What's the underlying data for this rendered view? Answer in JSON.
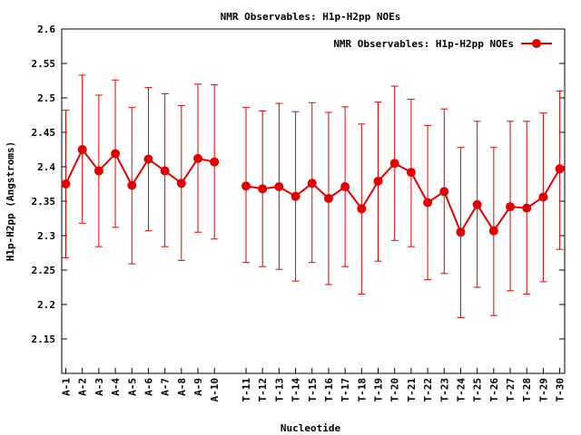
{
  "chart_data": {
    "type": "line",
    "title": "NMR Observables: H1p-H2pp NOEs",
    "xlabel": "Nucleotide",
    "ylabel": "H1p-H2pp (Angstroms)",
    "ylim": [
      2.1,
      2.6
    ],
    "yticks": [
      "2.15",
      "2.2",
      "2.25",
      "2.3",
      "2.35",
      "2.4",
      "2.45",
      "2.5",
      "2.55",
      "2.6"
    ],
    "legend": {
      "label": "NMR Observables: H1p-H2pp NOEs",
      "position": "top-right"
    },
    "color": "#e00000",
    "grid": false,
    "series": [
      {
        "name": "NMR Observables: H1p-H2pp NOEs",
        "points": [
          {
            "x": 1,
            "label": "A-1",
            "y": 2.375,
            "lo": 2.268,
            "hi": 2.482
          },
          {
            "x": 2,
            "label": "A-2",
            "y": 2.425,
            "lo": 2.318,
            "hi": 2.533
          },
          {
            "x": 3,
            "label": "A-3",
            "y": 2.394,
            "lo": 2.284,
            "hi": 2.504
          },
          {
            "x": 4,
            "label": "A-4",
            "y": 2.419,
            "lo": 2.312,
            "hi": 2.526
          },
          {
            "x": 5,
            "label": "A-5",
            "y": 2.373,
            "lo": 2.259,
            "hi": 2.486
          },
          {
            "x": 6,
            "label": "A-6",
            "y": 2.411,
            "lo": 2.307,
            "hi": 2.515
          },
          {
            "x": 7,
            "label": "A-7",
            "y": 2.394,
            "lo": 2.284,
            "hi": 2.506
          },
          {
            "x": 8,
            "label": "A-8",
            "y": 2.376,
            "lo": 2.264,
            "hi": 2.489
          },
          {
            "x": 9,
            "label": "A-9",
            "y": 2.412,
            "lo": 2.305,
            "hi": 2.52
          },
          {
            "x": 10,
            "label": "A-10",
            "y": 2.407,
            "lo": 2.295,
            "hi": 2.519
          },
          {
            "x": 11,
            "label": "T-11",
            "y": 2.372,
            "lo": 2.261,
            "hi": 2.486
          },
          {
            "x": 12,
            "label": "T-12",
            "y": 2.368,
            "lo": 2.255,
            "hi": 2.481
          },
          {
            "x": 13,
            "label": "T-13",
            "y": 2.371,
            "lo": 2.251,
            "hi": 2.492
          },
          {
            "x": 14,
            "label": "T-14",
            "y": 2.357,
            "lo": 2.234,
            "hi": 2.48
          },
          {
            "x": 15,
            "label": "T-15",
            "y": 2.376,
            "lo": 2.261,
            "hi": 2.493
          },
          {
            "x": 16,
            "label": "T-16",
            "y": 2.354,
            "lo": 2.229,
            "hi": 2.479
          },
          {
            "x": 17,
            "label": "T-17",
            "y": 2.371,
            "lo": 2.255,
            "hi": 2.487
          },
          {
            "x": 18,
            "label": "T-18",
            "y": 2.339,
            "lo": 2.215,
            "hi": 2.462
          },
          {
            "x": 19,
            "label": "T-19",
            "y": 2.379,
            "lo": 2.263,
            "hi": 2.494
          },
          {
            "x": 20,
            "label": "T-20",
            "y": 2.405,
            "lo": 2.293,
            "hi": 2.517
          },
          {
            "x": 21,
            "label": "T-21",
            "y": 2.392,
            "lo": 2.284,
            "hi": 2.498
          },
          {
            "x": 22,
            "label": "T-22",
            "y": 2.348,
            "lo": 2.236,
            "hi": 2.46
          },
          {
            "x": 23,
            "label": "T-23",
            "y": 2.364,
            "lo": 2.245,
            "hi": 2.484
          },
          {
            "x": 24,
            "label": "T-24",
            "y": 2.305,
            "lo": 2.181,
            "hi": 2.428
          },
          {
            "x": 25,
            "label": "T-25",
            "y": 2.345,
            "lo": 2.225,
            "hi": 2.466
          },
          {
            "x": 26,
            "label": "T-26",
            "y": 2.307,
            "lo": 2.184,
            "hi": 2.428
          },
          {
            "x": 27,
            "label": "T-27",
            "y": 2.342,
            "lo": 2.22,
            "hi": 2.466
          },
          {
            "x": 28,
            "label": "T-28",
            "y": 2.34,
            "lo": 2.215,
            "hi": 2.466
          },
          {
            "x": 29,
            "label": "T-29",
            "y": 2.356,
            "lo": 2.233,
            "hi": 2.478
          },
          {
            "x": 30,
            "label": "T-30",
            "y": 2.397,
            "lo": 2.28,
            "hi": 2.51
          }
        ]
      }
    ]
  }
}
